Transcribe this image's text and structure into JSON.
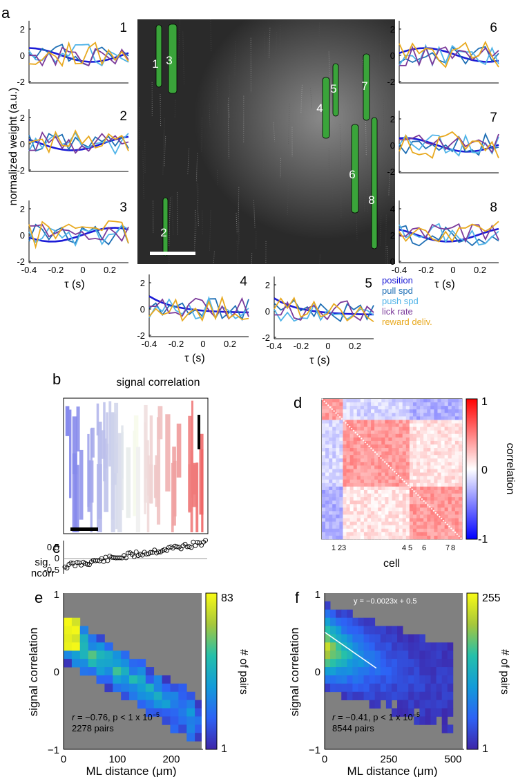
{
  "panel_letters": {
    "a": "a",
    "b": "b",
    "c": "c",
    "d": "d",
    "e": "e",
    "f": "f"
  },
  "panel_a": {
    "ylabel": "normalized weight (a.u.)",
    "xlabel": "τ (s)",
    "xticks": [
      "-0.4",
      "-0.2",
      "0",
      "0.2"
    ],
    "yticks": [
      "2",
      "0",
      "-2"
    ],
    "yticks_8": [
      "4",
      "2",
      "0"
    ],
    "cell_numbers": [
      "1",
      "2",
      "3",
      "4",
      "5",
      "6",
      "7",
      "8"
    ],
    "roi_labels": [
      "1",
      "3",
      "5",
      "7",
      "4",
      "6",
      "8",
      "2"
    ],
    "legend": [
      {
        "label": "position",
        "color": "#1a1ad6"
      },
      {
        "label": "pull spd",
        "color": "#1f6fb5"
      },
      {
        "label": "push spd",
        "color": "#4fb3e8"
      },
      {
        "label": "lick rate",
        "color": "#7b3a9a"
      },
      {
        "label": "reward deliv.",
        "color": "#e8a91f"
      }
    ]
  },
  "panel_b": {
    "title": "signal correlation"
  },
  "panel_c": {
    "ylabel_1": "sig.",
    "ylabel_2": "ncorr",
    "yticks": [
      "0.5",
      "0",
      "-0.5"
    ]
  },
  "panel_d": {
    "cbar_ticks": [
      "1",
      "0",
      "-1"
    ],
    "cbar_label": "correlation",
    "xlabel": "cell",
    "cell_ticks": [
      "1",
      "2",
      "3",
      "4",
      "5",
      "6",
      "7",
      "8"
    ]
  },
  "chart_data": [
    {
      "type": "heatmap",
      "panel": "e",
      "xlabel": "ML distance (μm)",
      "ylabel": "signal correlation",
      "xlim": [
        0,
        260
      ],
      "ylim": [
        -1,
        1
      ],
      "xticks": [
        "0",
        "100",
        "200"
      ],
      "yticks": [
        "1",
        "0",
        "−1"
      ],
      "colorbar": {
        "label": "# of pairs",
        "min": "1",
        "max": "83"
      },
      "stat_text": "r = −0.76, p < 1 x 10",
      "stat_exp": "−5",
      "pairs": "2278 pairs"
    },
    {
      "type": "heatmap",
      "panel": "f",
      "xlabel": "ML distance (μm)",
      "ylabel": "signal correlation",
      "xlim": [
        0,
        540
      ],
      "ylim": [
        -1,
        1
      ],
      "xticks": [
        "0",
        "250",
        "500"
      ],
      "yticks": [
        "1",
        "0",
        "−1"
      ],
      "colorbar": {
        "label": "# of pairs",
        "min": "1",
        "max": "255"
      },
      "fit_equation": "y = −0.0023x + 0.5",
      "fit": {
        "slope": -0.0023,
        "intercept": 0.5,
        "x_range": [
          0,
          200
        ]
      },
      "stat_text": "r = −0.41, p < 1 x 10",
      "stat_exp": "−5",
      "pairs": "8544 pairs"
    }
  ]
}
